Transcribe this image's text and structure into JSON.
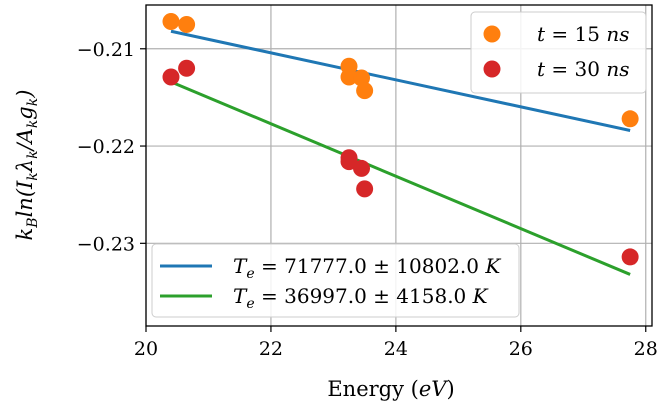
{
  "chart_data": {
    "type": "scatter",
    "xlabel": "Energy (eV)",
    "ylabel": "k_B ln(I_k λ_k / A_k g_k)",
    "xlim": [
      20.0,
      28.1
    ],
    "ylim": [
      -0.2385,
      -0.2055
    ],
    "x_ticks": [
      20,
      22,
      24,
      26,
      28
    ],
    "y_ticks": [
      -0.21,
      -0.22,
      -0.23
    ],
    "x_tick_labels": [
      "20",
      "22",
      "24",
      "26",
      "28"
    ],
    "y_tick_labels": [
      "−0.21",
      "−0.22",
      "−0.23"
    ],
    "grid": true,
    "series": [
      {
        "name": "t = 15 ns",
        "color": "#ff7f0e",
        "points": [
          {
            "x": 20.4,
            "y": -0.2072
          },
          {
            "x": 20.65,
            "y": -0.2075
          },
          {
            "x": 23.25,
            "y": -0.2118
          },
          {
            "x": 23.25,
            "y": -0.2129
          },
          {
            "x": 23.45,
            "y": -0.213
          },
          {
            "x": 23.5,
            "y": -0.2143
          },
          {
            "x": 27.75,
            "y": -0.2172
          }
        ]
      },
      {
        "name": "t = 30 ns",
        "color": "#d62728",
        "points": [
          {
            "x": 20.4,
            "y": -0.2129
          },
          {
            "x": 20.65,
            "y": -0.212
          },
          {
            "x": 23.25,
            "y": -0.2212
          },
          {
            "x": 23.25,
            "y": -0.2216
          },
          {
            "x": 23.45,
            "y": -0.2223
          },
          {
            "x": 23.5,
            "y": -0.2244
          },
          {
            "x": 27.75,
            "y": -0.2314
          }
        ]
      }
    ],
    "fits": [
      {
        "name": "T_e = 71777.0 ± 10802.0 K",
        "color": "#1f77b4",
        "x": [
          20.4,
          27.75
        ],
        "y": [
          -0.2082,
          -0.2184
        ]
      },
      {
        "name": "T_e = 36997.0 ± 4158.0 K",
        "color": "#2ca02c",
        "x": [
          20.4,
          27.75
        ],
        "y": [
          -0.2134,
          -0.2332
        ]
      }
    ],
    "legend_scatter_position": "top-right",
    "legend_fit_position": "bottom-left"
  },
  "legend": {
    "scatter": [
      {
        "var": "t",
        "eq": " = 15 ",
        "unit": "ns"
      },
      {
        "var": "t",
        "eq": " = 30 ",
        "unit": "ns"
      }
    ],
    "fits": [
      {
        "sym": "T",
        "sub": "e",
        "text": " = 71777.0 ± 10802.0 ",
        "unit": "K"
      },
      {
        "sym": "T",
        "sub": "e",
        "text": " = 36997.0 ± 4158.0 ",
        "unit": "K"
      }
    ]
  },
  "axis_labels": {
    "x_main": "Energy (",
    "x_unit": "eV",
    "x_close": ")"
  }
}
